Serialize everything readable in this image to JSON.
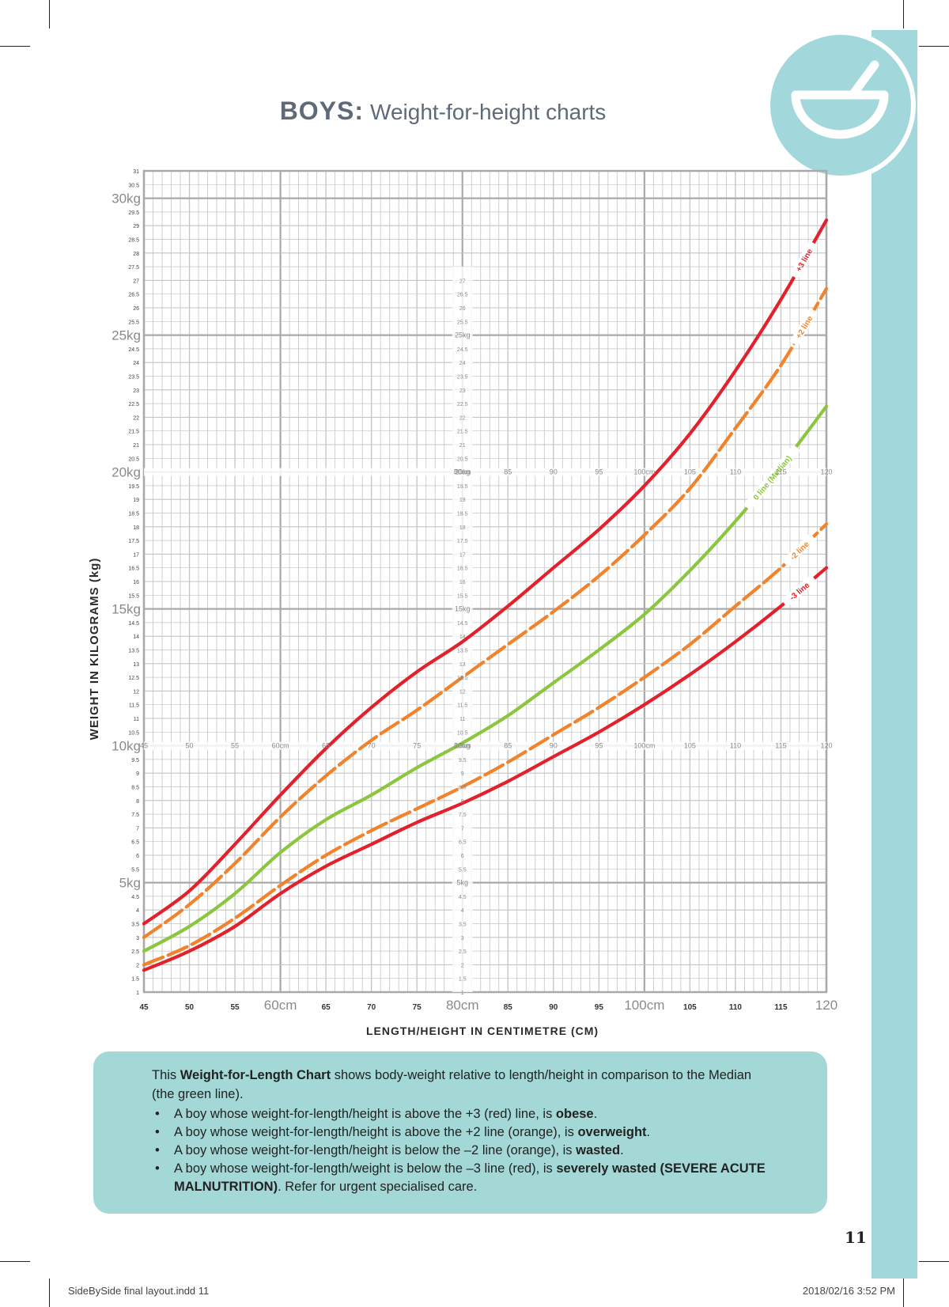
{
  "header": {
    "title_bold": "BOYS:",
    "title_rest": "Weight-for-height charts",
    "badge_icon": "mortar-bowl-icon"
  },
  "colors": {
    "grid": "#c4c4c4",
    "grid_major": "#a9a9a9",
    "plus3": "#e3212c",
    "plus2": "#f0832b",
    "median": "#8cc63f",
    "minus2": "#f0832b",
    "minus3": "#e3212c",
    "teal": "#a2d8dc"
  },
  "chart_data": {
    "type": "line",
    "title": "Weight-for-height charts",
    "xlabel": "LENGTH/HEIGHT IN CENTIMETRE (CM)",
    "ylabel": "WEIGHT IN KILOGRAMS (kg)",
    "xlim": [
      45,
      120
    ],
    "ylim": [
      1,
      31
    ],
    "grid": true,
    "x_major_labels": [
      "45",
      "50",
      "55",
      "60cm",
      "65",
      "70",
      "75",
      "80cm",
      "85",
      "90",
      "95",
      "100cm",
      "105",
      "110",
      "115",
      "120"
    ],
    "y_major_labels": [
      "5kg",
      "10kg",
      "15kg",
      "20kg",
      "25kg",
      "30kg"
    ],
    "x": [
      45,
      50,
      55,
      60,
      65,
      70,
      75,
      80,
      85,
      90,
      95,
      100,
      105,
      110,
      115,
      120
    ],
    "series": [
      {
        "name": "+3 line",
        "values": [
          3.5,
          4.7,
          6.4,
          8.2,
          9.9,
          11.4,
          12.7,
          13.8,
          15.1,
          16.5,
          17.9,
          19.5,
          21.4,
          23.7,
          26.3,
          29.2
        ],
        "dashed": false
      },
      {
        "name": "+2 line",
        "values": [
          3.0,
          4.2,
          5.7,
          7.4,
          8.9,
          10.2,
          11.3,
          12.5,
          13.7,
          14.9,
          16.2,
          17.7,
          19.4,
          21.6,
          23.9,
          26.7
        ],
        "dashed": true
      },
      {
        "name": "0 line (Median)",
        "values": [
          2.5,
          3.4,
          4.6,
          6.1,
          7.3,
          8.2,
          9.2,
          10.1,
          11.1,
          12.3,
          13.5,
          14.8,
          16.4,
          18.2,
          20.2,
          22.4
        ],
        "dashed": false
      },
      {
        "name": "-2 line",
        "values": [
          2.0,
          2.7,
          3.7,
          4.9,
          6.0,
          6.9,
          7.7,
          8.5,
          9.4,
          10.4,
          11.4,
          12.5,
          13.7,
          15.1,
          16.5,
          18.1
        ],
        "dashed": true
      },
      {
        "name": "-3 line",
        "values": [
          1.8,
          2.5,
          3.4,
          4.6,
          5.6,
          6.4,
          7.2,
          7.9,
          8.7,
          9.6,
          10.5,
          11.5,
          12.6,
          13.8,
          15.1,
          16.5
        ],
        "dashed": false
      }
    ]
  },
  "info": {
    "intro_pre": "This ",
    "intro_bold": "Weight-for-Length Chart",
    "intro_post": " shows body-weight relative to length/height in comparison to the Median (the green line).",
    "b1_pre": "A boy whose weight-for-length/height is above the +3 (red) line, is ",
    "b1_bold": "obese",
    "b1_post": ".",
    "b2_pre": "A boy whose weight-for-length/height is above the +2 line (orange), is ",
    "b2_bold": "overweight",
    "b2_post": ".",
    "b3_pre": "A boy whose weight-for-length/height is below the –2 line (orange), is ",
    "b3_bold": "wasted",
    "b3_post": ".",
    "b4_pre": "A boy whose weight-for-length/weight is below the –3 line (red), is ",
    "b4_bold": "severely wasted (SEVERE ACUTE MALNUTRITION)",
    "b4_post": ". Refer for urgent specialised care."
  },
  "footer": {
    "page_number": "11",
    "file": "SideBySide final layout.indd   11",
    "datetime": "2018/02/16   3:52 PM"
  }
}
